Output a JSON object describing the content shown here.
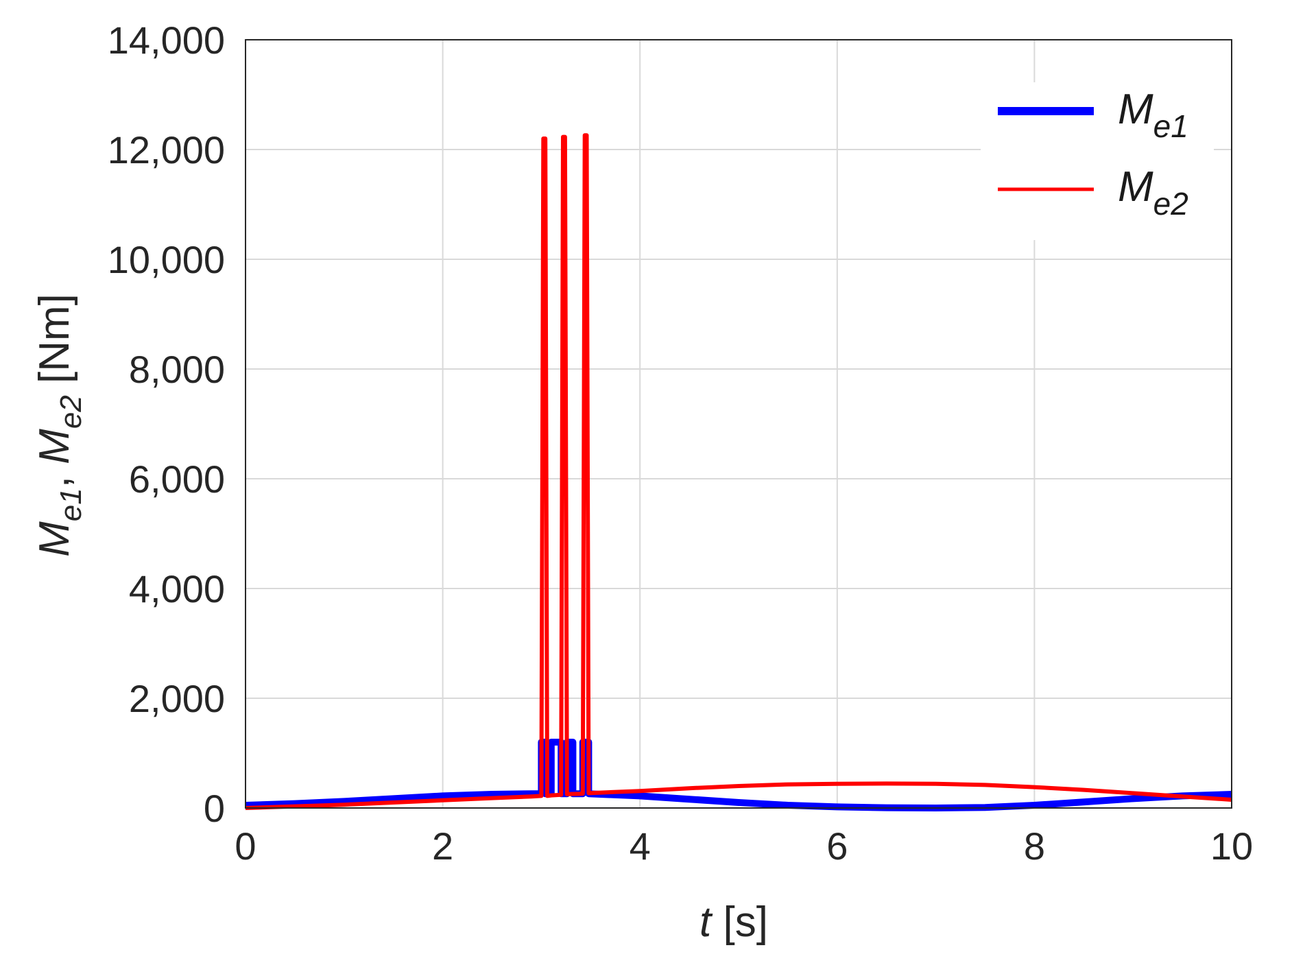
{
  "chart_data": {
    "type": "line",
    "xlabel": {
      "symbol": "t",
      "unit": "[s]"
    },
    "ylabel": {
      "symbol_1": "M",
      "sub_1": "e1",
      "separator": ",",
      "symbol_2": "M",
      "sub_2": "e2",
      "unit": "[Nm]"
    },
    "xlim": [
      0,
      10
    ],
    "ylim": [
      0,
      14000
    ],
    "xticks": [
      0,
      2,
      4,
      6,
      8,
      10
    ],
    "xtick_labels": [
      "0",
      "2",
      "4",
      "6",
      "8",
      "10"
    ],
    "yticks": [
      0,
      2000,
      4000,
      6000,
      8000,
      10000,
      12000,
      14000
    ],
    "ytick_labels": [
      "0",
      "2,000",
      "4,000",
      "6,000",
      "8,000",
      "10,000",
      "12,000",
      "14,000"
    ],
    "grid": true,
    "legend_position": "top-right",
    "series": [
      {
        "name": {
          "symbol": "M",
          "sub": "e1"
        },
        "color": "#0000ff",
        "x": [
          0,
          0.5,
          1,
          1.5,
          2,
          2.5,
          2.9,
          3.0,
          3.0,
          3.04,
          3.04,
          3.1,
          3.1,
          3.2,
          3.2,
          3.26,
          3.26,
          3.32,
          3.32,
          3.42,
          3.42,
          3.48,
          3.48,
          3.6,
          4,
          4.5,
          5,
          5.5,
          6,
          6.5,
          7,
          7.5,
          8,
          8.5,
          9,
          9.5,
          10
        ],
        "y": [
          50,
          80,
          120,
          170,
          220,
          250,
          260,
          260,
          1200,
          1200,
          260,
          260,
          1200,
          1200,
          260,
          260,
          1200,
          1200,
          260,
          260,
          1200,
          1200,
          260,
          250,
          220,
          160,
          100,
          50,
          20,
          5,
          0,
          10,
          50,
          110,
          170,
          220,
          250
        ]
      },
      {
        "name": {
          "symbol": "M",
          "sub": "e2"
        },
        "color": "#ff0000",
        "x": [
          0,
          0.5,
          1,
          1.5,
          2,
          2.5,
          2.9,
          3.0,
          3.02,
          3.04,
          3.06,
          3.1,
          3.2,
          3.22,
          3.24,
          3.26,
          3.3,
          3.42,
          3.44,
          3.46,
          3.48,
          3.6,
          4,
          4.5,
          5,
          5.5,
          6,
          6.5,
          7,
          7.5,
          8,
          8.5,
          9,
          9.5,
          10
        ],
        "y": [
          0,
          30,
          60,
          100,
          140,
          180,
          210,
          220,
          12200,
          12200,
          220,
          230,
          240,
          12230,
          12230,
          250,
          255,
          260,
          12260,
          12260,
          270,
          280,
          310,
          360,
          400,
          430,
          440,
          445,
          440,
          420,
          380,
          330,
          270,
          210,
          150
        ]
      }
    ]
  }
}
